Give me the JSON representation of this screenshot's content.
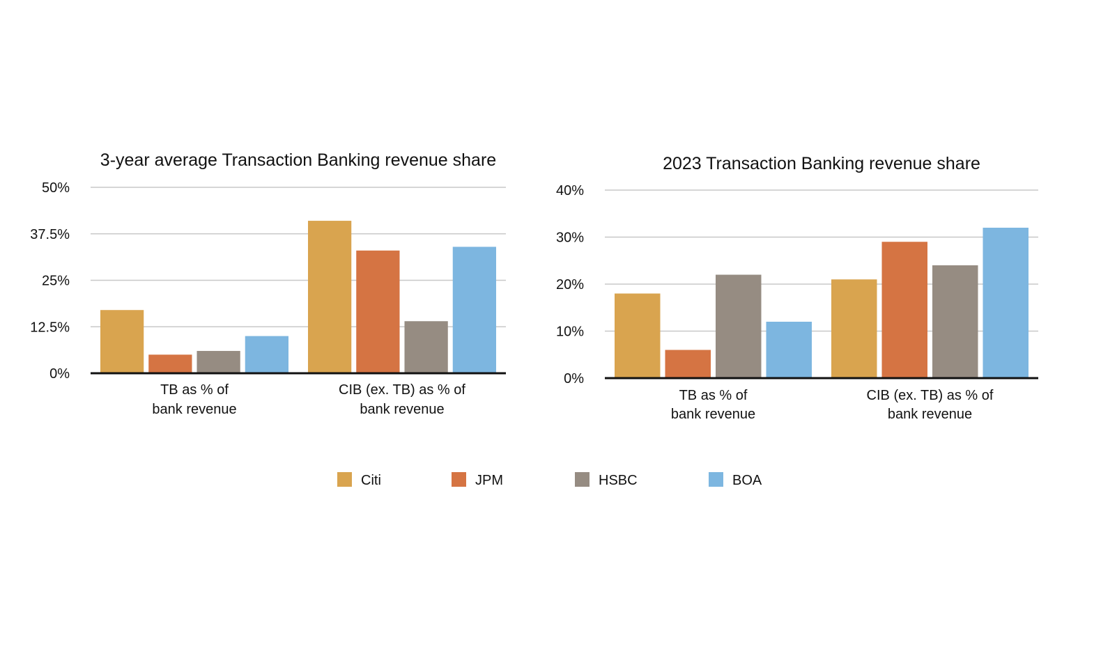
{
  "colors": {
    "Citi": "#D9A44F",
    "JPM": "#D57443",
    "HSBC": "#968C82",
    "BOA": "#7DB6E0",
    "grid": "#C8C8C8",
    "axis": "#111111"
  },
  "legend": {
    "placement": "bottom-center",
    "items": [
      "Citi",
      "JPM",
      "HSBC",
      "BOA"
    ]
  },
  "chart_data": [
    {
      "type": "bar",
      "title": "3-year average Transaction Banking revenue share",
      "categories": [
        [
          "TB as % of",
          "bank revenue"
        ],
        [
          "CIB (ex. TB) as % of",
          "bank revenue"
        ]
      ],
      "series": [
        {
          "name": "Citi",
          "values": [
            17,
            41
          ]
        },
        {
          "name": "JPM",
          "values": [
            5,
            33
          ]
        },
        {
          "name": "HSBC",
          "values": [
            6,
            14
          ]
        },
        {
          "name": "BOA",
          "values": [
            10,
            34
          ]
        }
      ],
      "yticks": [
        0,
        12.5,
        25,
        37.5,
        50
      ],
      "ytick_labels": [
        "0%",
        "12.5%",
        "25%",
        "37.5%",
        "50%"
      ],
      "ylim": [
        0,
        50
      ],
      "grid": true
    },
    {
      "type": "bar",
      "title": "2023 Transaction Banking revenue share",
      "categories": [
        [
          "TB as % of",
          "bank revenue"
        ],
        [
          "CIB (ex. TB) as % of",
          "bank revenue"
        ]
      ],
      "series": [
        {
          "name": "Citi",
          "values": [
            18,
            21
          ]
        },
        {
          "name": "JPM",
          "values": [
            6,
            29
          ]
        },
        {
          "name": "HSBC",
          "values": [
            22,
            24
          ]
        },
        {
          "name": "BOA",
          "values": [
            12,
            32
          ]
        }
      ],
      "yticks": [
        0,
        10,
        20,
        30,
        40
      ],
      "ytick_labels": [
        "0%",
        "10%",
        "20%",
        "30%",
        "40%"
      ],
      "ylim": [
        0,
        40
      ],
      "grid": true
    }
  ]
}
